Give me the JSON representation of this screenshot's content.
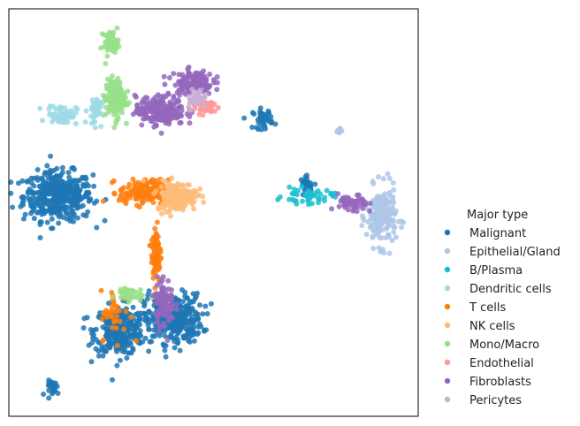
{
  "chart_data": {
    "type": "scatter",
    "title": "",
    "xlabel": "",
    "ylabel": "",
    "xlim": [
      0,
      100
    ],
    "ylim": [
      0,
      100
    ],
    "grid": false,
    "axes_ticks": false,
    "legend": {
      "title": "Major type",
      "placement": "right",
      "entries": [
        "Malignant",
        "Epithelial/Gland",
        "B/Plasma",
        "Dendritic cells",
        "T cells",
        "NK cells",
        "Mono/Macro",
        "Endothelial",
        "Fibroblasts",
        "Pericytes"
      ]
    },
    "series": [
      {
        "name": "Malignant",
        "color": "#1f77b4",
        "clusters": [
          {
            "cx": 12,
            "cy": 54,
            "sx": 7,
            "sy": 5,
            "n": 420
          },
          {
            "cx": 27,
            "cy": 21,
            "sx": 5,
            "sy": 5,
            "n": 300
          },
          {
            "cx": 40,
            "cy": 24,
            "sx": 6,
            "sy": 5,
            "n": 330
          },
          {
            "cx": 11,
            "cy": 7,
            "sx": 1.5,
            "sy": 1.5,
            "n": 25
          },
          {
            "cx": 62,
            "cy": 73,
            "sx": 2,
            "sy": 2,
            "n": 40
          },
          {
            "cx": 73,
            "cy": 57,
            "sx": 1.5,
            "sy": 1.5,
            "n": 25
          }
        ]
      },
      {
        "name": "Epithelial/Gland",
        "color": "#aec7e8",
        "clusters": [
          {
            "cx": 91,
            "cy": 49,
            "sx": 3,
            "sy": 6,
            "n": 200
          },
          {
            "cx": 81,
            "cy": 70,
            "sx": 1,
            "sy": 1,
            "n": 8
          }
        ]
      },
      {
        "name": "B/Plasma",
        "color": "#17becf",
        "clusters": [
          {
            "cx": 73,
            "cy": 54,
            "sx": 5,
            "sy": 1.5,
            "n": 45
          }
        ]
      },
      {
        "name": "Dendritic cells",
        "color": "#9edae5",
        "clusters": [
          {
            "cx": 13,
            "cy": 74,
            "sx": 3,
            "sy": 2,
            "n": 70
          },
          {
            "cx": 21,
            "cy": 75,
            "sx": 1.5,
            "sy": 3,
            "n": 40
          }
        ]
      },
      {
        "name": "T cells",
        "color": "#ff7f0e",
        "clusters": [
          {
            "cx": 33,
            "cy": 55,
            "sx": 5,
            "sy": 2.5,
            "n": 160
          },
          {
            "cx": 36,
            "cy": 40,
            "sx": 1,
            "sy": 6,
            "n": 90
          },
          {
            "cx": 26,
            "cy": 25,
            "sx": 3,
            "sy": 5,
            "n": 40
          }
        ]
      },
      {
        "name": "NK cells",
        "color": "#ffbb78",
        "clusters": [
          {
            "cx": 41,
            "cy": 54,
            "sx": 4,
            "sy": 3,
            "n": 180
          }
        ]
      },
      {
        "name": "Mono/Macro",
        "color": "#98df8a",
        "clusters": [
          {
            "cx": 25,
            "cy": 92,
            "sx": 1.5,
            "sy": 2,
            "n": 60
          },
          {
            "cx": 26,
            "cy": 78,
            "sx": 2,
            "sy": 4,
            "n": 160
          },
          {
            "cx": 29,
            "cy": 30,
            "sx": 3,
            "sy": 1.5,
            "n": 35
          }
        ]
      },
      {
        "name": "Endothelial",
        "color": "#ff9896",
        "clusters": [
          {
            "cx": 48,
            "cy": 76,
            "sx": 3,
            "sy": 1.5,
            "n": 40
          }
        ]
      },
      {
        "name": "Fibroblasts",
        "color": "#9467bd",
        "clusters": [
          {
            "cx": 37,
            "cy": 75,
            "sx": 5,
            "sy": 3,
            "n": 210
          },
          {
            "cx": 45,
            "cy": 82,
            "sx": 4,
            "sy": 2.5,
            "n": 120
          },
          {
            "cx": 38,
            "cy": 28,
            "sx": 2,
            "sy": 5,
            "n": 100
          },
          {
            "cx": 84,
            "cy": 52,
            "sx": 3,
            "sy": 2,
            "n": 50
          }
        ]
      },
      {
        "name": "Pericytes",
        "color": "#c5b0d5",
        "clusters": [
          {
            "cx": 46,
            "cy": 78,
            "sx": 2,
            "sy": 2,
            "n": 35
          }
        ]
      }
    ]
  }
}
